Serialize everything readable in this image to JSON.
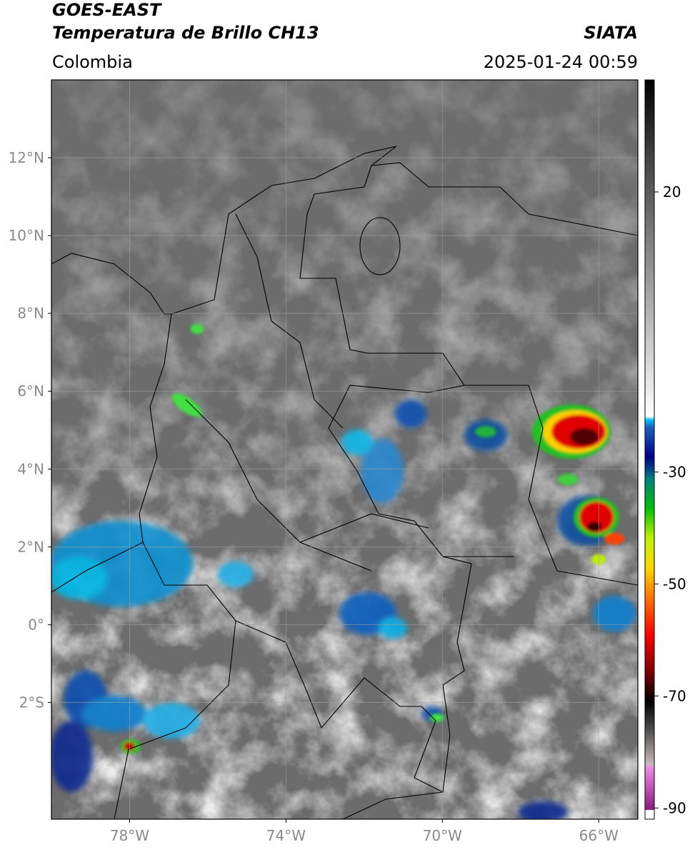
{
  "header": {
    "title": "GOES-EAST",
    "subtitle": "Temperatura de Brillo CH13",
    "agency": "SIATA",
    "region": "Colombia",
    "datetime": "2025-01-24 00:59"
  },
  "map": {
    "lonlim": [
      -80,
      -65
    ],
    "latlim": [
      -5,
      14
    ],
    "grid": true,
    "lonticks": [
      {
        "value": -78,
        "label": "78°W"
      },
      {
        "value": -74,
        "label": "74°W"
      },
      {
        "value": -70,
        "label": "70°W"
      },
      {
        "value": -66,
        "label": "66°W"
      }
    ],
    "latticks": [
      {
        "value": 12,
        "label": "12°N"
      },
      {
        "value": 10,
        "label": "10°N"
      },
      {
        "value": 8,
        "label": "8°N"
      },
      {
        "value": 6,
        "label": "6°N"
      },
      {
        "value": 4,
        "label": "4°N"
      },
      {
        "value": 2,
        "label": "2°N"
      },
      {
        "value": 0,
        "label": "0°"
      },
      {
        "value": -2,
        "label": "2°S"
      }
    ]
  },
  "colorbar": {
    "lim": [
      -92,
      40
    ],
    "ticks": [
      20,
      -30,
      -50,
      -70,
      -90
    ]
  }
}
